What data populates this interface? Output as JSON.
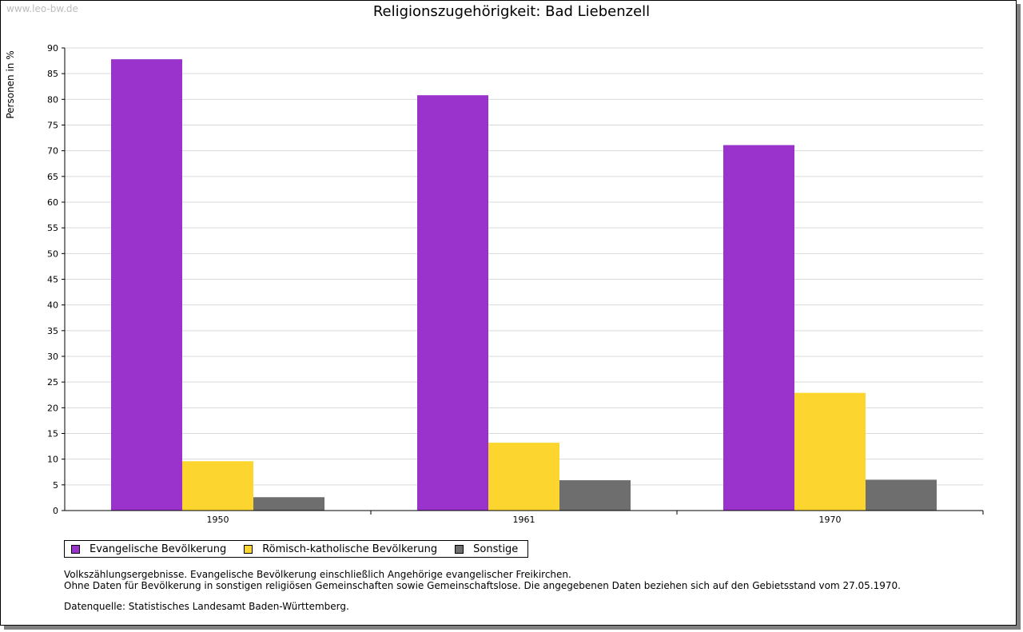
{
  "header": {
    "watermark": "www.leo-bw.de"
  },
  "chart_data": {
    "type": "bar",
    "title": "Religionszugehörigkeit: Bad Liebenzell",
    "ylabel": "Personen in %",
    "xlabel": "",
    "categories": [
      "1950",
      "1961",
      "1970"
    ],
    "ylim": [
      0,
      90
    ],
    "yticks": [
      0,
      5,
      10,
      15,
      20,
      25,
      30,
      35,
      40,
      45,
      50,
      55,
      60,
      65,
      70,
      75,
      80,
      85,
      90
    ],
    "grid": true,
    "legend_position": "bottom-left",
    "series": [
      {
        "name": "Evangelische Bevölkerung",
        "color": "#9933cc",
        "values": [
          87.8,
          80.8,
          71.1
        ]
      },
      {
        "name": "Römisch-katholische Bevölkerung",
        "color": "#fcd62e",
        "values": [
          9.6,
          13.2,
          22.9
        ]
      },
      {
        "name": "Sonstige",
        "color": "#6e6e6e",
        "values": [
          2.6,
          5.9,
          6.0
        ]
      }
    ]
  },
  "notes": {
    "line1": "Volkszählungsergebnisse. Evangelische Bevölkerung einschließlich Angehörige evangelischer Freikirchen.",
    "line2": "Ohne Daten für Bevölkerung in sonstigen religiösen Gemeinschaften sowie Gemeinschaftslose. Die angegebenen Daten beziehen sich auf den Gebietsstand vom 27.05.1970.",
    "source": "Datenquelle: Statistisches Landesamt Baden-Württemberg."
  }
}
